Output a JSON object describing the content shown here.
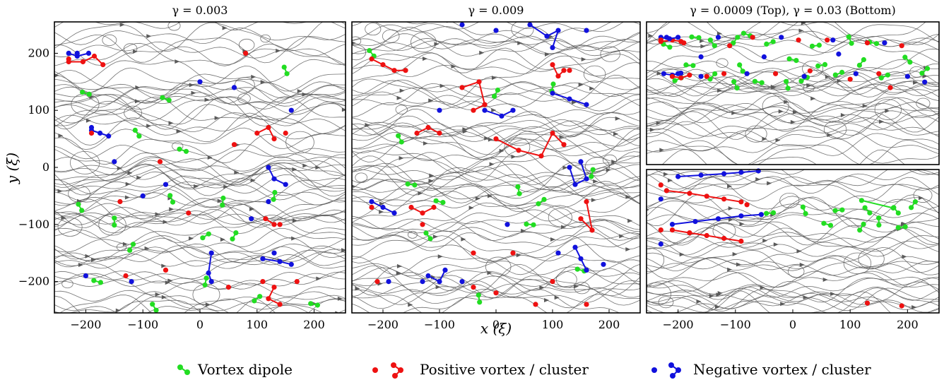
{
  "colors": {
    "dipole": "#22dd22",
    "positive": "#ee1111",
    "negative": "#1111dd",
    "stream": "#5a5a5a"
  },
  "chart_data": {
    "type": "scatter",
    "xlabel": "x (ξ)",
    "ylabel": "y (ξ)",
    "xlim": [
      -255,
      255
    ],
    "ylim": [
      -255,
      255
    ],
    "xticks": [
      "−200",
      "−100",
      "0",
      "100",
      "200"
    ],
    "yticks": [
      "200",
      "100",
      "0",
      "−100",
      "−200"
    ],
    "legend": {
      "placement": "bottom",
      "entries": [
        {
          "label": "Vortex dipole",
          "kind": "dipole"
        },
        {
          "label": "Positive vortex / cluster",
          "kind": "positive"
        },
        {
          "label": "Negative vortex / cluster",
          "kind": "negative"
        }
      ]
    },
    "panels": [
      {
        "title": "γ = 0.003",
        "dipoles": [
          [
            -210,
            -70
          ],
          [
            -150,
            -95
          ],
          [
            -120,
            -140
          ],
          [
            -80,
            -245
          ],
          [
            -50,
            -55
          ],
          [
            -30,
            30
          ],
          [
            10,
            -120
          ],
          [
            40,
            -60
          ],
          [
            60,
            -120
          ],
          [
            100,
            -230
          ],
          [
            130,
            -50
          ],
          [
            150,
            170
          ],
          [
            -180,
            -200
          ],
          [
            -60,
            120
          ],
          [
            200,
            -240
          ],
          [
            10,
            -200
          ],
          [
            -110,
            60
          ],
          [
            -200,
            130
          ]
        ],
        "positive": [
          [
            -230,
            190
          ],
          [
            -130,
            -190
          ],
          [
            -60,
            -180
          ],
          [
            -20,
            -80
          ],
          [
            50,
            -210
          ],
          [
            80,
            200
          ],
          [
            140,
            -100
          ],
          [
            150,
            60
          ],
          [
            -190,
            60
          ],
          [
            -140,
            -60
          ],
          [
            60,
            40
          ],
          [
            110,
            -200
          ],
          [
            -70,
            10
          ],
          [
            170,
            -200
          ]
        ],
        "negative": [
          [
            -215,
            200
          ],
          [
            -200,
            -190
          ],
          [
            -150,
            10
          ],
          [
            -100,
            -50
          ],
          [
            -60,
            -30
          ],
          [
            60,
            140
          ],
          [
            120,
            -60
          ],
          [
            130,
            -150
          ],
          [
            160,
            100
          ],
          [
            -190,
            70
          ],
          [
            0,
            150
          ],
          [
            90,
            -90
          ],
          [
            -120,
            -200
          ]
        ],
        "pos_clusters": [
          [
            [
              -230,
              185
            ],
            [
              -205,
              185
            ],
            [
              -185,
              195
            ],
            [
              -170,
              180
            ]
          ],
          [
            [
              130,
              -210
            ],
            [
              120,
              -230
            ],
            [
              140,
              -240
            ]
          ],
          [
            [
              100,
              60
            ],
            [
              120,
              70
            ],
            [
              130,
              50
            ]
          ],
          [
            [
              115,
              -90
            ],
            [
              130,
              -100
            ]
          ]
        ],
        "neg_clusters": [
          [
            [
              -230,
              200
            ],
            [
              -215,
              195
            ],
            [
              -195,
              200
            ]
          ],
          [
            [
              20,
              -150
            ],
            [
              15,
              -185
            ],
            [
              20,
              -200
            ]
          ],
          [
            [
              110,
              -160
            ],
            [
              140,
              -165
            ],
            [
              160,
              -170
            ]
          ],
          [
            [
              120,
              0
            ],
            [
              130,
              -20
            ],
            [
              150,
              -30
            ]
          ],
          [
            [
              -190,
              65
            ],
            [
              -175,
              60
            ],
            [
              -160,
              55
            ]
          ]
        ]
      },
      {
        "title": "γ = 0.009",
        "dipoles": [
          [
            -170,
            50
          ],
          [
            -150,
            -30
          ],
          [
            -100,
            -60
          ],
          [
            -30,
            -230
          ],
          [
            0,
            130
          ],
          [
            40,
            -40
          ],
          [
            80,
            -60
          ],
          [
            100,
            140
          ],
          [
            150,
            -180
          ],
          [
            170,
            -10
          ],
          [
            -120,
            -120
          ],
          [
            60,
            -100
          ],
          [
            -220,
            200
          ]
        ],
        "positive": [
          [
            -210,
            -200
          ],
          [
            -130,
            -100
          ],
          [
            -40,
            -210
          ],
          [
            0,
            -220
          ],
          [
            100,
            -200
          ],
          [
            160,
            -240
          ],
          [
            -220,
            -70
          ],
          [
            -40,
            -150
          ],
          [
            30,
            -150
          ],
          [
            70,
            -240
          ],
          [
            130,
            170
          ]
        ],
        "negative": [
          [
            -190,
            -200
          ],
          [
            -130,
            -200
          ],
          [
            -60,
            -200
          ],
          [
            20,
            -100
          ],
          [
            110,
            -150
          ],
          [
            190,
            -170
          ],
          [
            -60,
            250
          ],
          [
            0,
            240
          ],
          [
            160,
            240
          ],
          [
            -100,
            100
          ]
        ],
        "pos_clusters": [
          [
            [
              -220,
              190
            ],
            [
              -200,
              180
            ],
            [
              -180,
              170
            ],
            [
              -160,
              170
            ]
          ],
          [
            [
              -60,
              140
            ],
            [
              -30,
              150
            ],
            [
              -20,
              110
            ],
            [
              -40,
              100
            ]
          ],
          [
            [
              100,
              180
            ],
            [
              110,
              160
            ],
            [
              120,
              170
            ]
          ],
          [
            [
              0,
              50
            ],
            [
              40,
              30
            ],
            [
              80,
              20
            ],
            [
              100,
              60
            ],
            [
              120,
              40
            ]
          ],
          [
            [
              -150,
              -70
            ],
            [
              -130,
              -80
            ],
            [
              -110,
              -70
            ]
          ],
          [
            [
              160,
              -60
            ],
            [
              170,
              -110
            ],
            [
              150,
              -90
            ]
          ],
          [
            [
              -140,
              60
            ],
            [
              -120,
              70
            ],
            [
              -100,
              60
            ]
          ]
        ],
        "neg_clusters": [
          [
            [
              60,
              250
            ],
            [
              90,
              230
            ],
            [
              110,
              240
            ],
            [
              100,
              210
            ]
          ],
          [
            [
              -20,
              100
            ],
            [
              10,
              90
            ],
            [
              30,
              100
            ]
          ],
          [
            [
              100,
              130
            ],
            [
              130,
              120
            ],
            [
              160,
              110
            ]
          ],
          [
            [
              130,
              0
            ],
            [
              140,
              -30
            ],
            [
              160,
              -20
            ],
            [
              150,
              10
            ]
          ],
          [
            [
              -220,
              -60
            ],
            [
              -200,
              -70
            ],
            [
              -180,
              -80
            ]
          ],
          [
            [
              -120,
              -190
            ],
            [
              -100,
              -200
            ],
            [
              -90,
              -180
            ]
          ],
          [
            [
              140,
              -140
            ],
            [
              150,
              -160
            ],
            [
              160,
              -180
            ]
          ]
        ]
      },
      {
        "title": "γ = 0.0009 (Top), γ = 0.03 (Bottom)",
        "stacked": true,
        "top": {
          "dipoles": [
            [
              -170,
              200
            ],
            [
              -140,
              180
            ],
            [
              -100,
              190
            ],
            [
              -80,
              210
            ],
            [
              -40,
              180
            ],
            [
              0,
              120
            ],
            [
              40,
              170
            ],
            [
              100,
              190
            ],
            [
              140,
              180
            ],
            [
              -200,
              50
            ],
            [
              -140,
              60
            ],
            [
              -100,
              30
            ],
            [
              -60,
              40
            ],
            [
              20,
              50
            ],
            [
              80,
              70
            ],
            [
              160,
              60
            ],
            [
              -220,
              170
            ],
            [
              -180,
              100
            ],
            [
              -90,
              90
            ],
            [
              50,
              100
            ],
            [
              120,
              110
            ],
            [
              200,
              120
            ],
            [
              -10,
              30
            ],
            [
              230,
              80
            ]
          ],
          "positive": [
            [
              -230,
              190
            ],
            [
              -190,
              180
            ],
            [
              -150,
              60
            ],
            [
              -120,
              70
            ],
            [
              -70,
              200
            ],
            [
              -30,
              70
            ],
            [
              10,
              190
            ],
            [
              60,
              190
            ],
            [
              100,
              50
            ],
            [
              150,
              70
            ],
            [
              190,
              170
            ],
            [
              -210,
              60
            ],
            [
              -110,
              170
            ],
            [
              30,
              80
            ],
            [
              130,
              180
            ],
            [
              170,
              20
            ]
          ],
          "negative": [
            [
              -220,
              200
            ],
            [
              -200,
              70
            ],
            [
              -160,
              60
            ],
            [
              -130,
              200
            ],
            [
              -80,
              70
            ],
            [
              -20,
              200
            ],
            [
              20,
              60
            ],
            [
              70,
              190
            ],
            [
              110,
              70
            ],
            [
              160,
              180
            ],
            [
              200,
              60
            ],
            [
              -50,
              130
            ],
            [
              80,
              140
            ],
            [
              230,
              40
            ],
            [
              -160,
              130
            ]
          ],
          "pos_clusters": [
            [
              [
                -230,
                185
              ],
              [
                -210,
                190
              ],
              [
                -195,
                185
              ]
            ],
            [
              [
                -210,
                60
              ],
              [
                -195,
                55
              ],
              [
                -180,
                65
              ]
            ]
          ],
          "neg_clusters": [
            [
              [
                -230,
                200
              ],
              [
                -215,
                195
              ],
              [
                -200,
                200
              ]
            ],
            [
              [
                -225,
                70
              ],
              [
                -210,
                65
              ],
              [
                -195,
                72
              ]
            ]
          ]
        },
        "bottom": {
          "dipoles": [
            [
              -40,
              100
            ],
            [
              20,
              110
            ],
            [
              80,
              110
            ],
            [
              130,
              110
            ],
            [
              180,
              110
            ],
            [
              210,
              130
            ],
            [
              60,
              60
            ],
            [
              120,
              50
            ],
            [
              190,
              50
            ],
            [
              150,
              70
            ]
          ],
          "positive": [
            [
              -230,
              200
            ],
            [
              -230,
              40
            ],
            [
              -80,
              130
            ],
            [
              190,
              -230
            ],
            [
              130,
              -220
            ]
          ],
          "negative": [
            [
              -230,
              -10
            ],
            [
              -230,
              150
            ]
          ],
          "pos_clusters": [
            [
              [
                -220,
                180
              ],
              [
                -180,
                170
              ],
              [
                -150,
                160
              ],
              [
                -120,
                150
              ],
              [
                -90,
                140
              ]
            ],
            [
              [
                -210,
                40
              ],
              [
                -180,
                30
              ],
              [
                -150,
                20
              ],
              [
                -120,
                10
              ],
              [
                -90,
                0
              ]
            ]
          ],
          "neg_clusters": [
            [
              [
                -200,
                230
              ],
              [
                -160,
                235
              ],
              [
                -120,
                240
              ],
              [
                -90,
                245
              ],
              [
                -60,
                250
              ]
            ],
            [
              [
                -210,
                60
              ],
              [
                -170,
                70
              ],
              [
                -130,
                80
              ],
              [
                -90,
                90
              ],
              [
                -55,
                95
              ]
            ]
          ],
          "dipole_lines": [
            [
              [
                120,
                145
              ],
              [
                175,
                118
              ]
            ]
          ]
        }
      }
    ]
  }
}
